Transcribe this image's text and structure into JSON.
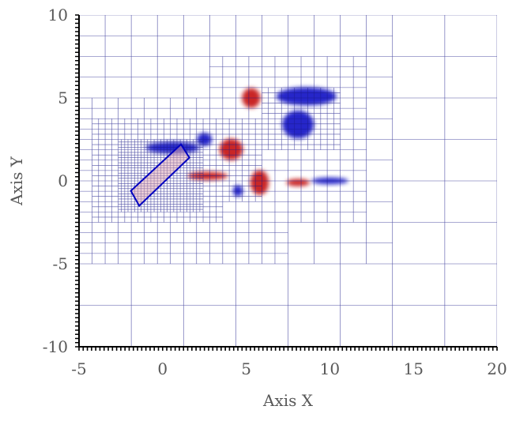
{
  "chart_data": {
    "type": "heatmap",
    "title": "",
    "xlabel": "Axis X",
    "ylabel": "Axis Y",
    "xlim": [
      -5,
      20
    ],
    "ylim": [
      -10,
      10
    ],
    "x_ticks": [
      -5,
      0,
      5,
      10,
      15,
      20
    ],
    "y_ticks": [
      -10,
      -5,
      0,
      5,
      10
    ],
    "grid": "adaptive mesh refinement cells (blue lines)",
    "colormap": {
      "positive": "#c00000",
      "negative": "#0000c0",
      "zero": "#ffffff"
    },
    "body": {
      "shape": "rounded rectangle (plate)",
      "corners": [
        [
          -1.9,
          -0.6
        ],
        [
          -1.4,
          -1.5
        ],
        [
          1.6,
          1.4
        ],
        [
          1.1,
          2.2
        ]
      ]
    },
    "vortices": [
      {
        "sign": "negative",
        "x": 8.1,
        "y": 3.4,
        "rx": 0.95,
        "ry": 0.85
      },
      {
        "sign": "negative",
        "x": 8.6,
        "y": 5.1,
        "rx": 1.8,
        "ry": 0.55
      },
      {
        "sign": "negative",
        "x": 2.5,
        "y": 2.5,
        "rx": 0.45,
        "ry": 0.4
      },
      {
        "sign": "negative",
        "x": 0.6,
        "y": 2.0,
        "rx": 1.6,
        "ry": 0.35
      },
      {
        "sign": "negative",
        "x": 4.5,
        "y": -0.6,
        "rx": 0.3,
        "ry": 0.35
      },
      {
        "sign": "negative",
        "x": 10.0,
        "y": 0.0,
        "rx": 1.1,
        "ry": 0.2
      },
      {
        "sign": "positive",
        "x": 5.8,
        "y": -0.1,
        "rx": 0.55,
        "ry": 0.75
      },
      {
        "sign": "positive",
        "x": 4.1,
        "y": 1.9,
        "rx": 0.7,
        "ry": 0.65
      },
      {
        "sign": "positive",
        "x": 5.3,
        "y": 5.0,
        "rx": 0.55,
        "ry": 0.6
      },
      {
        "sign": "positive",
        "x": 8.1,
        "y": -0.1,
        "rx": 0.7,
        "ry": 0.22
      },
      {
        "sign": "positive",
        "x": 2.7,
        "y": 0.3,
        "rx": 1.2,
        "ry": 0.25
      }
    ],
    "mesh": {
      "domain": [
        -5,
        20,
        -10,
        10
      ],
      "base_level": 3,
      "max_level": 7,
      "refine_regions": [
        {
          "x": [
            -2.5,
            2.2
          ],
          "y": [
            -1.8,
            2.5
          ],
          "level": 7
        },
        {
          "x": [
            -3.5,
            3.0
          ],
          "y": [
            -2.5,
            3.3
          ],
          "level": 6
        },
        {
          "x": [
            0.5,
            5.8
          ],
          "y": [
            -1.2,
            3.2
          ],
          "level": 6
        },
        {
          "x": [
            6.5,
            10.0
          ],
          "y": [
            2.0,
            5.5
          ],
          "level": 6
        },
        {
          "x": [
            -4.0,
            6.5
          ],
          "y": [
            -4.0,
            4.5
          ],
          "level": 5
        },
        {
          "x": [
            3.5,
            12.0
          ],
          "y": [
            -1.5,
            6.5
          ],
          "level": 5
        },
        {
          "x": [
            -5.0,
            13.0
          ],
          "y": [
            -5.0,
            9.0
          ],
          "level": 4
        }
      ]
    }
  }
}
